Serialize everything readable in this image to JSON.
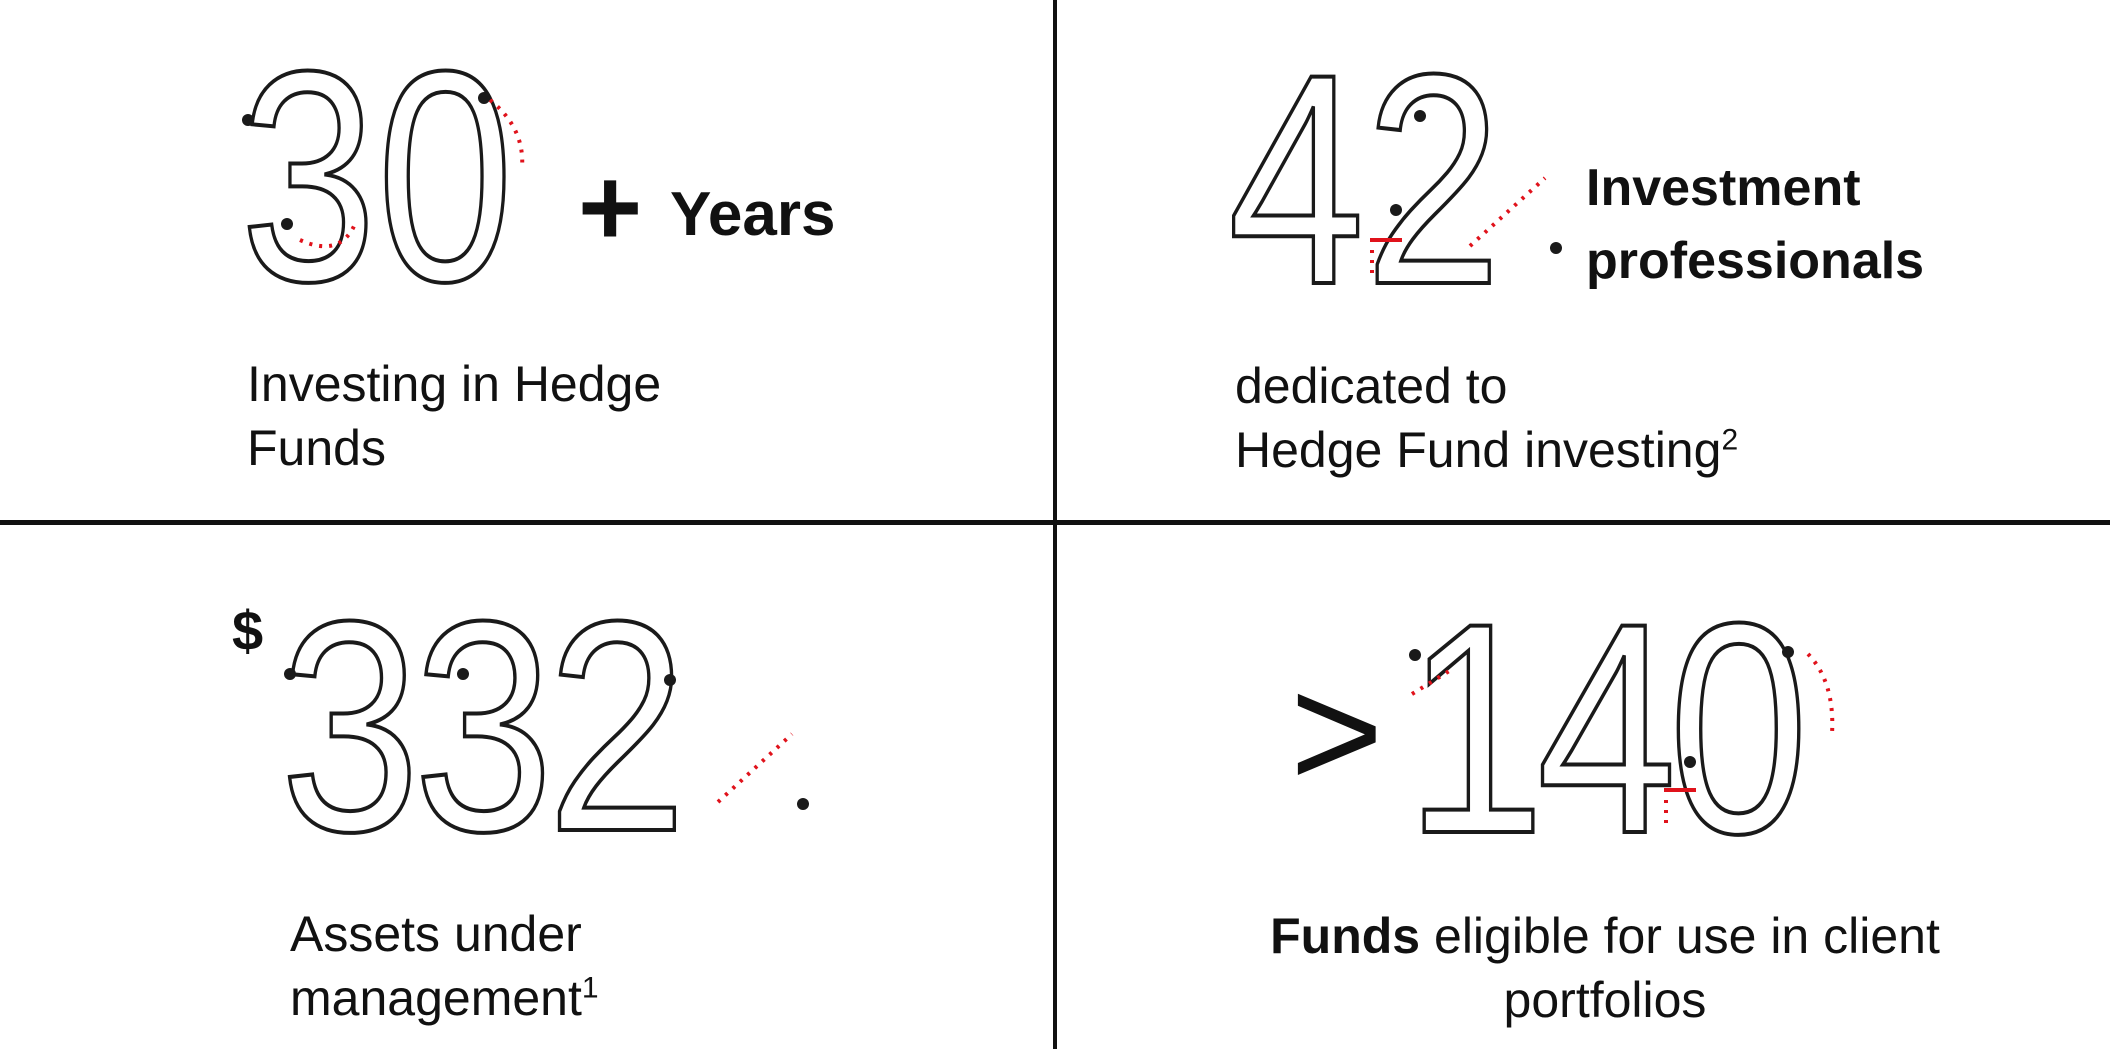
{
  "stats": [
    {
      "value": "30",
      "suffix": "+",
      "unit": "Years",
      "description_lines": [
        "Investing in Hedge",
        "Funds"
      ]
    },
    {
      "value": "42",
      "unit_lines": [
        "Investment",
        "professionals"
      ],
      "description_lines": [
        "dedicated to",
        "Hedge Fund investing"
      ],
      "footnote": "2"
    },
    {
      "prefix": "$",
      "value": "332",
      "description_lines": [
        "Assets under",
        "management"
      ],
      "footnote": "1"
    },
    {
      "prefix": ">",
      "value": "140",
      "description_bold": "Funds",
      "description_rest": " eligible for use in client",
      "description_line2": "portfolios"
    }
  ],
  "colors": {
    "ink": "#111111",
    "accent": "#e0121b"
  }
}
